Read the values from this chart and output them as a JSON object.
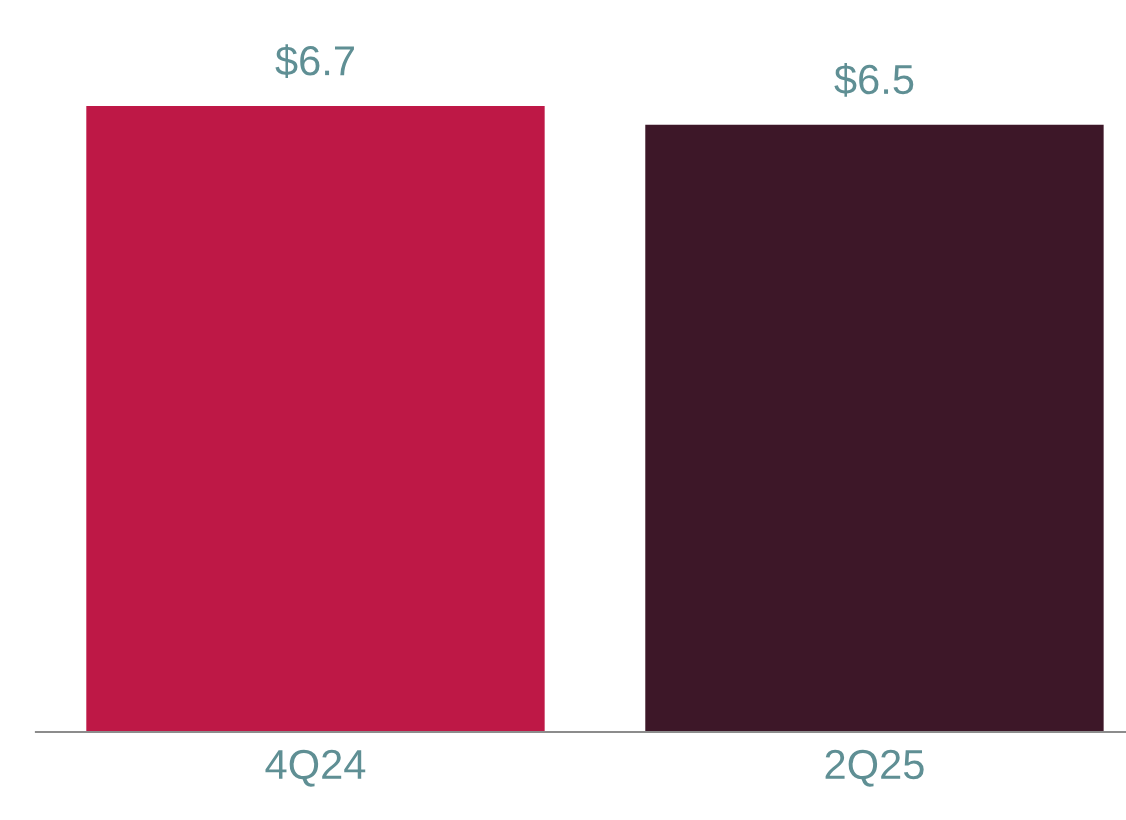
{
  "chart_data": {
    "type": "bar",
    "categories": [
      "4Q24",
      "2Q25"
    ],
    "values": [
      6.7,
      6.5
    ],
    "colors": [
      "#be1846",
      "#3d1728"
    ],
    "value_labels": [
      "$6.7",
      "$6.5"
    ],
    "tick_labels": "x",
    "grid": false,
    "legend": false
  }
}
